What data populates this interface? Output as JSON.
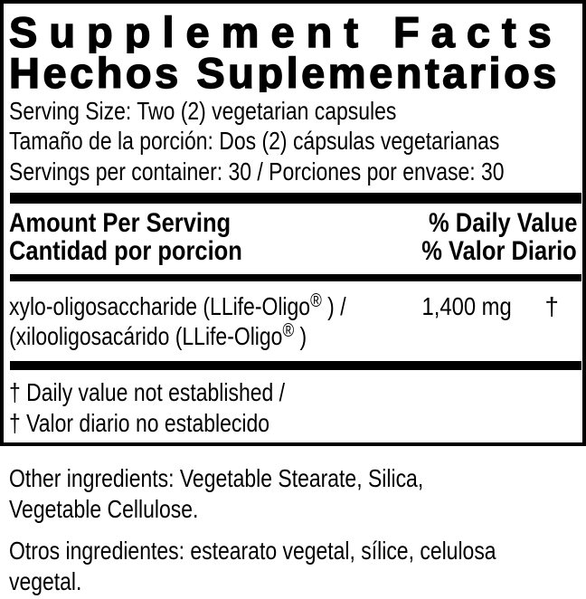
{
  "panel": {
    "title_en": "Supplement Facts",
    "title_es": "Hechos Suplementarios",
    "serving": {
      "size_en": "Serving Size: Two (2) vegetarian capsules",
      "size_es": "Tamaño de la porción: Dos (2) cápsulas vegetarianas",
      "per_container": "Servings per container: 30 / Porciones por envase: 30"
    },
    "header": {
      "left_en": "Amount Per Serving",
      "right_en": "% Daily Value",
      "left_es": "Cantidad por porcion",
      "right_es": "% Valor Diario"
    },
    "ingredient": {
      "name_en": "xylo-oligosaccharide (LLife-Oligo",
      "reg": "®",
      "name_en_suffix": " ) /",
      "amount": "1,400 mg",
      "daily_value_symbol": "†",
      "name_es": "(xilooligosacárido (LLife-Oligo",
      "name_es_suffix": " )"
    },
    "footnotes": {
      "en": "† Daily value not established  /",
      "es": "† Valor diario no establecido"
    }
  },
  "other_ingredients": {
    "en": "Other ingredients: Vegetable Stearate, Silica,\nVegetable Cellulose.",
    "es": "Otros ingredientes: estearato vegetal, sílice, celulosa\nvegetal."
  },
  "colors": {
    "text": "#000000",
    "background": "#ffffff"
  }
}
